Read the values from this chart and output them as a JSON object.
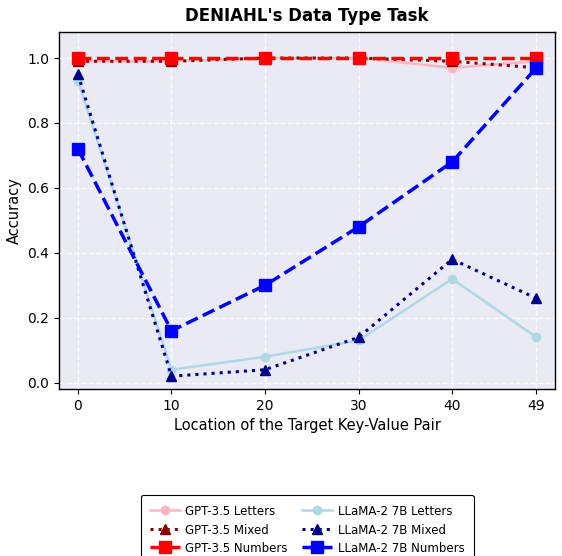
{
  "title": "DENIAHL's Data Type Task",
  "xlabel": "Location of the Target Key-Value Pair",
  "ylabel": "Accuracy",
  "x": [
    0,
    10,
    20,
    30,
    40,
    49
  ],
  "gpt35_letters": [
    0.99,
    0.99,
    1.0,
    1.0,
    0.97,
    0.99
  ],
  "gpt35_mixed": [
    0.99,
    0.99,
    1.0,
    1.0,
    0.99,
    0.97
  ],
  "gpt35_numbers": [
    1.0,
    1.0,
    1.0,
    1.0,
    1.0,
    1.0
  ],
  "llama_letters": [
    0.93,
    0.04,
    0.08,
    0.13,
    0.32,
    0.14
  ],
  "llama_mixed": [
    0.95,
    0.02,
    0.04,
    0.14,
    0.38,
    0.26
  ],
  "llama_numbers": [
    0.72,
    0.16,
    0.3,
    0.48,
    0.68,
    0.97
  ],
  "color_gpt_letters": "#ffb6c1",
  "color_gpt_mixed": "#8b0000",
  "color_gpt_numbers": "#ff0000",
  "color_llama_letters": "#add8e6",
  "color_llama_mixed": "#00008b",
  "color_llama_numbers": "#0000ff",
  "ylim": [
    -0.02,
    1.08
  ],
  "xticks": [
    0,
    10,
    20,
    30,
    40,
    49
  ],
  "figsize": [
    5.62,
    5.56
  ],
  "dpi": 100
}
